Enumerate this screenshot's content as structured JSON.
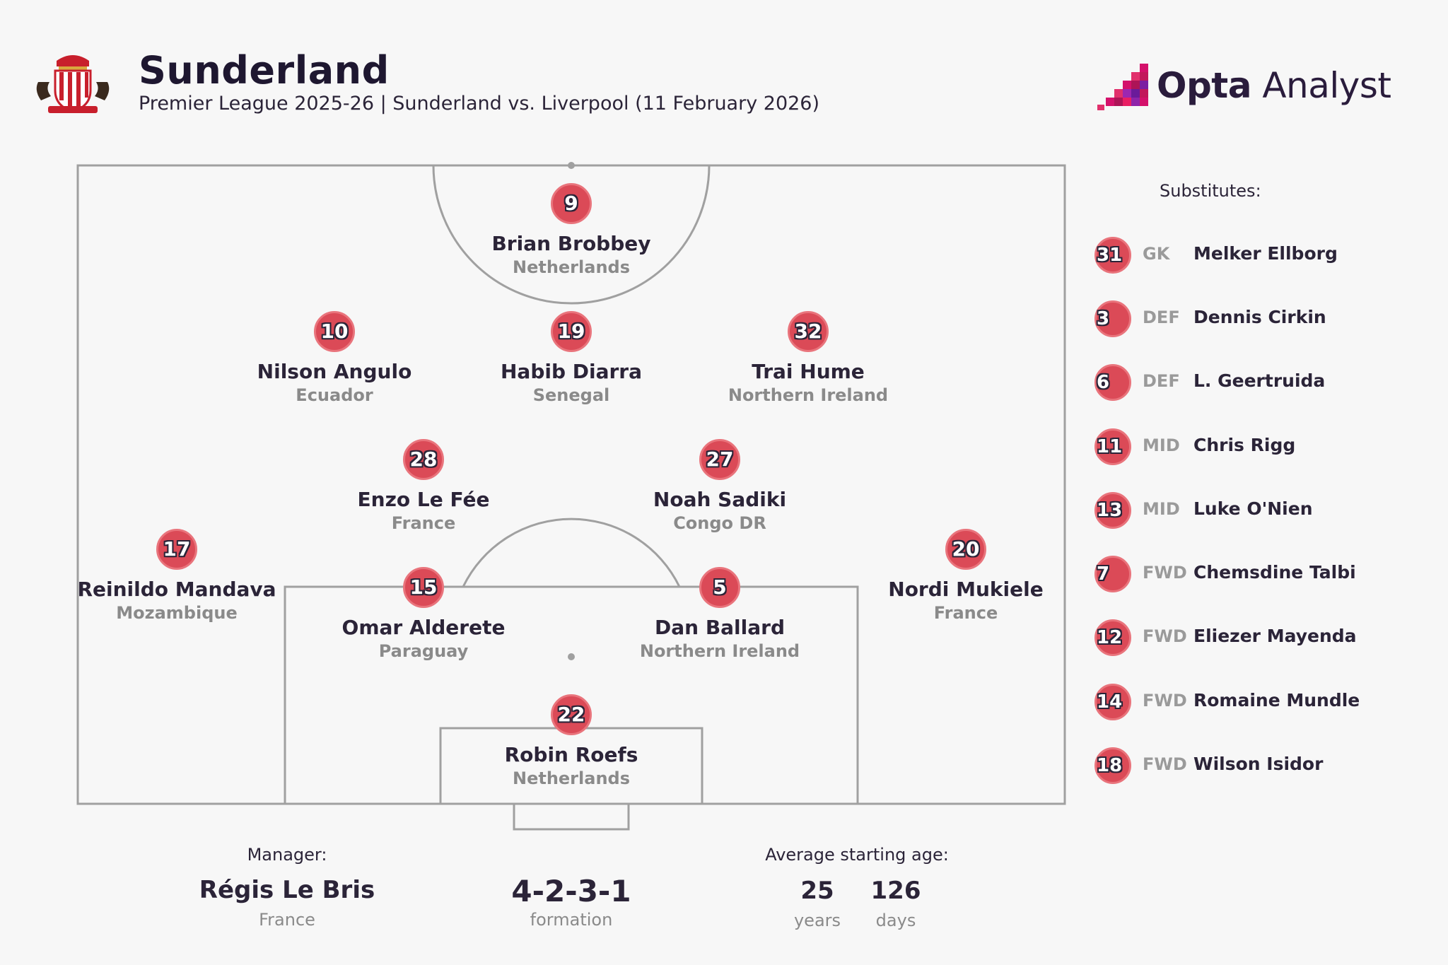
{
  "header": {
    "team": "Sunderland",
    "subtitle": "Premier League 2025-26 | Sunderland vs. Liverpool (11 February 2026)",
    "crest_icon": "sunderland-crest-icon"
  },
  "brand": {
    "name_strong": "Opta",
    "name_light": " Analyst",
    "accent": "#d4116b"
  },
  "colors": {
    "badge": "#db4a57",
    "pitch_lines": "#a0a0a0",
    "background": "#f7f7f7"
  },
  "starting_xi": [
    {
      "number": "9",
      "name": "Brian Brobbey",
      "nation": "Netherlands"
    },
    {
      "number": "10",
      "name": "Nilson Angulo",
      "nation": "Ecuador"
    },
    {
      "number": "19",
      "name": "Habib Diarra",
      "nation": "Senegal"
    },
    {
      "number": "32",
      "name": "Trai Hume",
      "nation": "Northern Ireland"
    },
    {
      "number": "28",
      "name": "Enzo Le Fée",
      "nation": "France"
    },
    {
      "number": "27",
      "name": "Noah Sadiki",
      "nation": "Congo DR"
    },
    {
      "number": "17",
      "name": "Reinildo Mandava",
      "nation": "Mozambique"
    },
    {
      "number": "15",
      "name": "Omar Alderete",
      "nation": "Paraguay"
    },
    {
      "number": "5",
      "name": "Dan Ballard",
      "nation": "Northern Ireland"
    },
    {
      "number": "20",
      "name": "Nordi Mukiele",
      "nation": "France"
    },
    {
      "number": "22",
      "name": "Robin Roefs",
      "nation": "Netherlands"
    }
  ],
  "substitutes": {
    "title": "Substitutes:",
    "items": [
      {
        "number": "31",
        "position": "GK",
        "name": "Melker Ellborg"
      },
      {
        "number": "3",
        "position": "DEF",
        "name": "Dennis Cirkin"
      },
      {
        "number": "6",
        "position": "DEF",
        "name": "L. Geertruida"
      },
      {
        "number": "11",
        "position": "MID",
        "name": "Chris Rigg"
      },
      {
        "number": "13",
        "position": "MID",
        "name": "Luke O'Nien"
      },
      {
        "number": "7",
        "position": "FWD",
        "name": "Chemsdine Talbi"
      },
      {
        "number": "12",
        "position": "FWD",
        "name": "Eliezer Mayenda"
      },
      {
        "number": "14",
        "position": "FWD",
        "name": "Romaine Mundle"
      },
      {
        "number": "18",
        "position": "FWD",
        "name": "Wilson Isidor"
      }
    ]
  },
  "footer": {
    "manager_label": "Manager:",
    "manager_name": "Régis Le Bris",
    "manager_nation": "France",
    "formation": "4-2-3-1",
    "formation_label": "formation",
    "age_label": "Average starting age:",
    "age_years": "25",
    "age_years_label": "years",
    "age_days": "126",
    "age_days_label": "days"
  }
}
